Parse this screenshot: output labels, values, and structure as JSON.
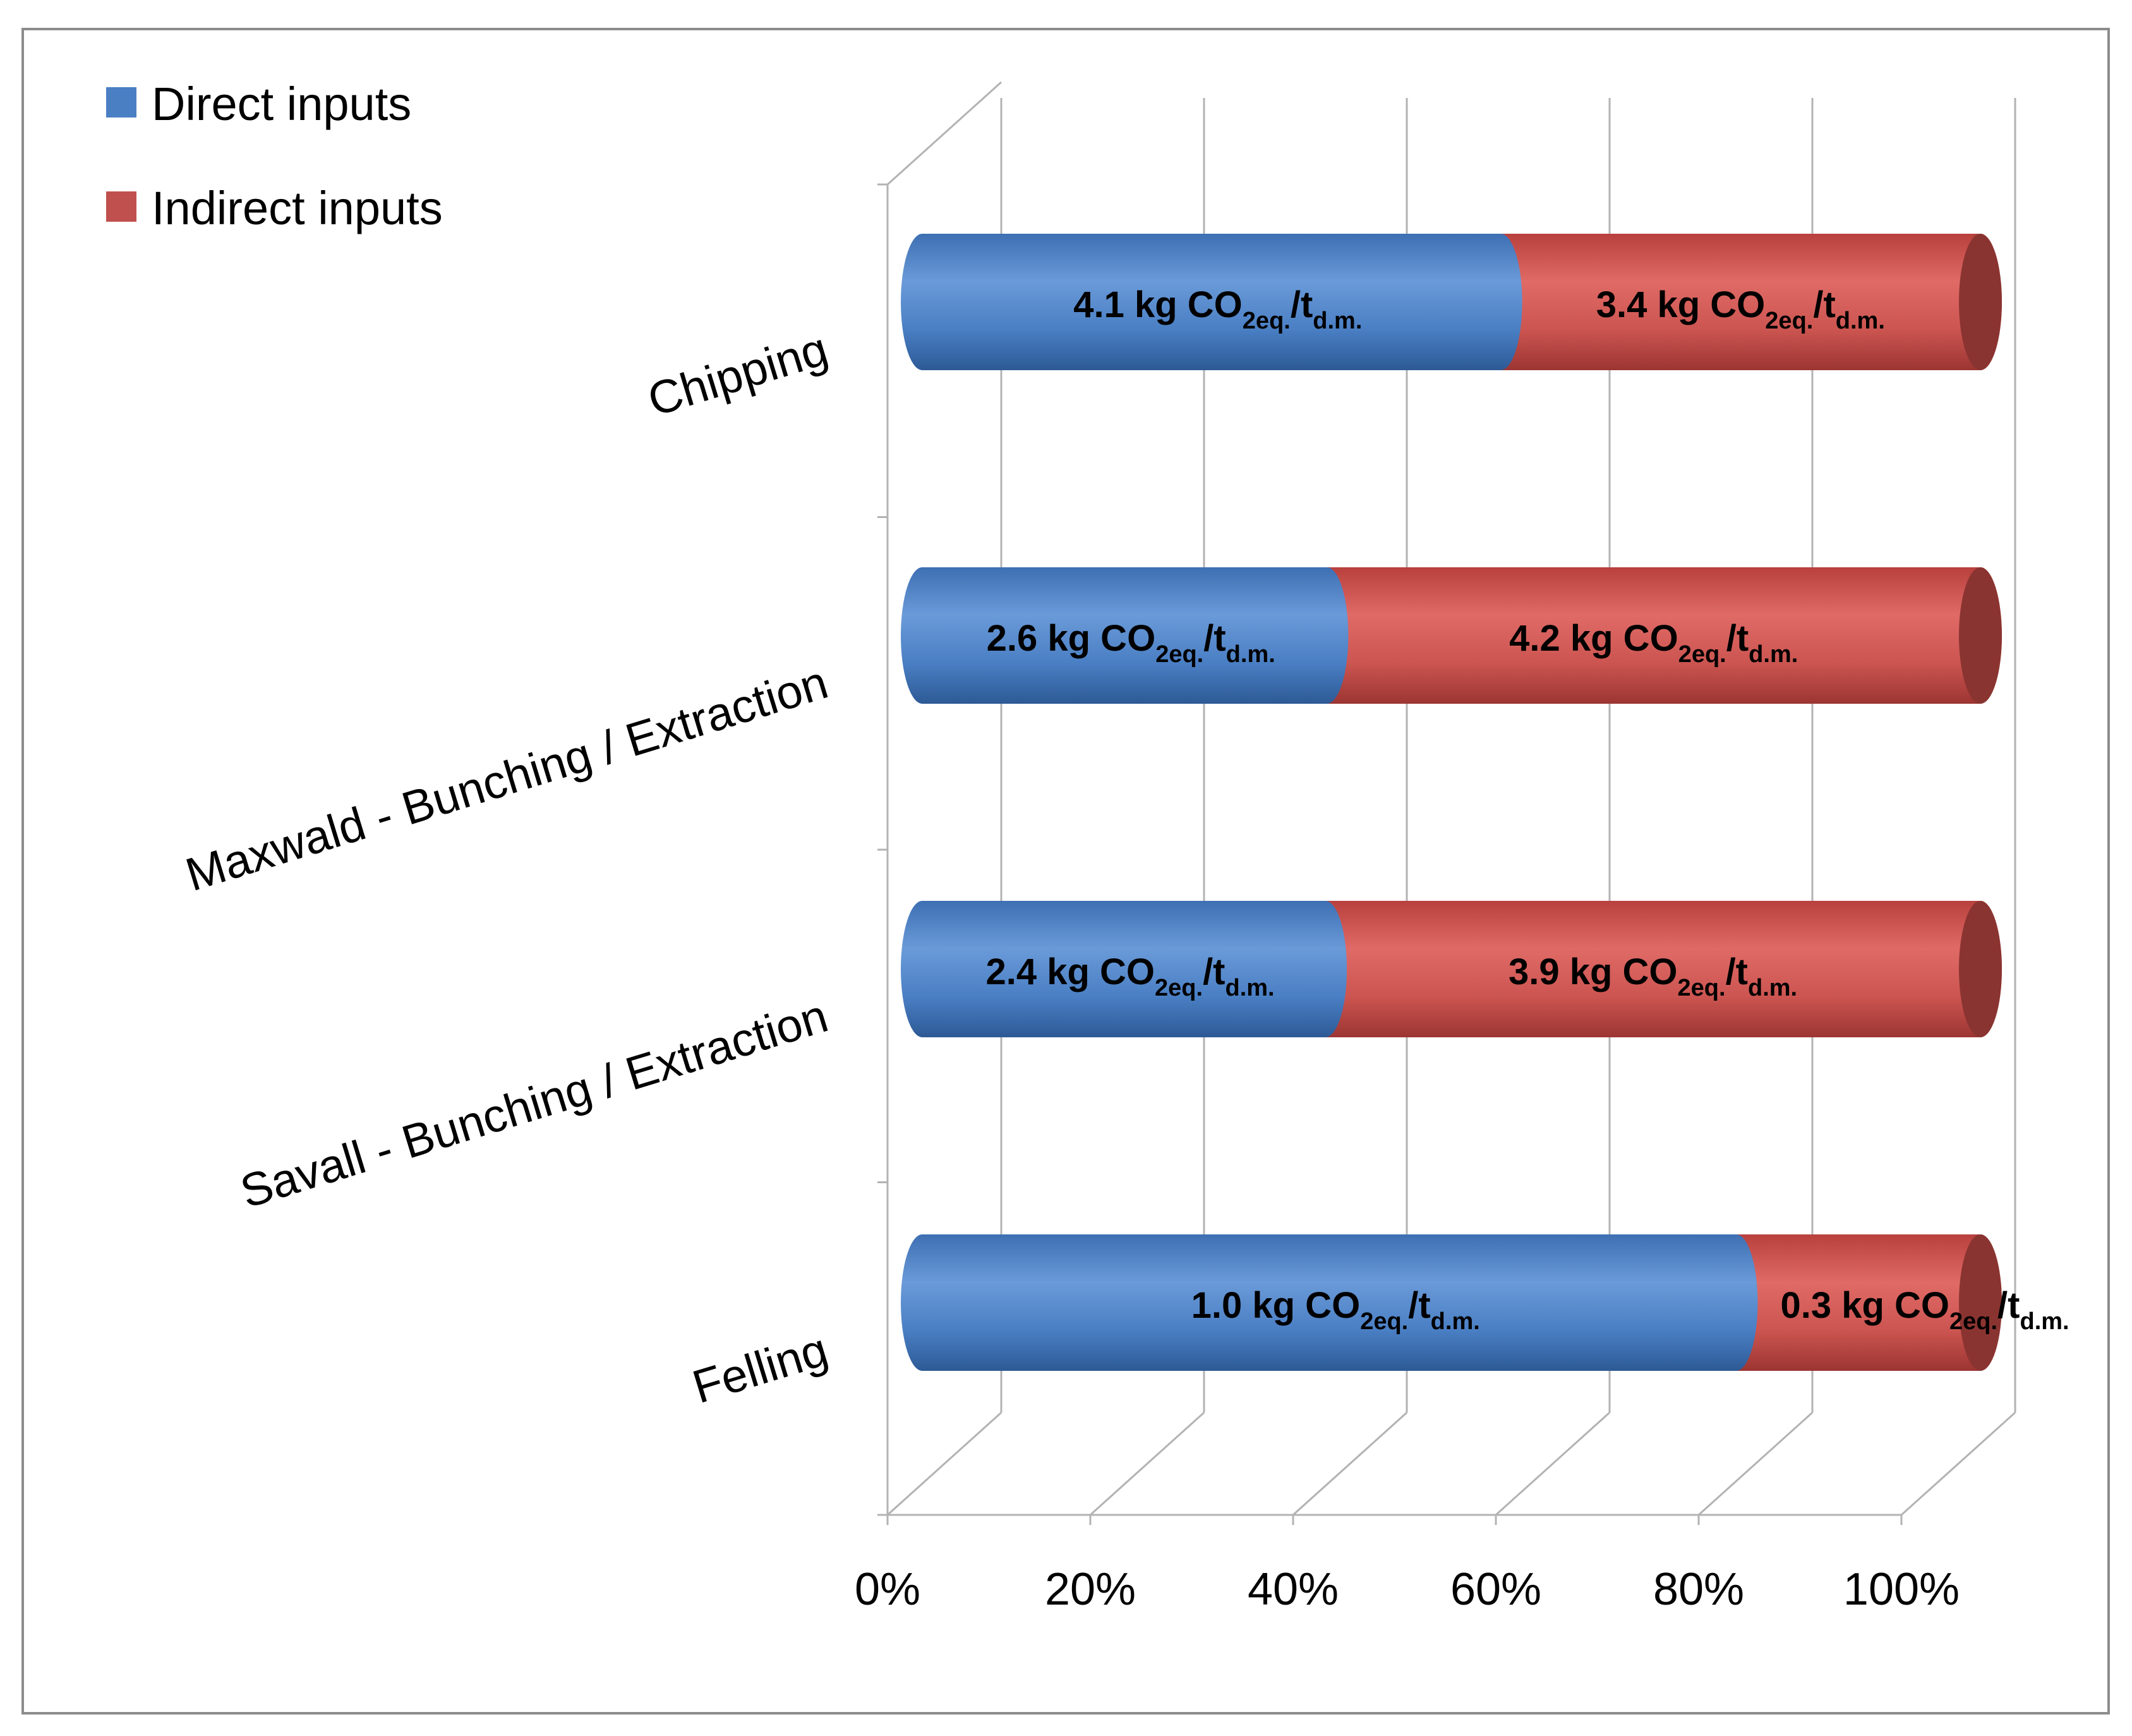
{
  "chart_data": {
    "type": "bar",
    "orientation": "horizontal",
    "stacking": "percent",
    "style": "3d-cylinder",
    "categories": [
      "Chipping",
      "Maxwald - Bunching / Extraction",
      "Savall - Bunching / Extraction",
      "Felling"
    ],
    "series": [
      {
        "name": "Direct inputs",
        "color": "#4a7fc4",
        "values": [
          4.1,
          2.6,
          2.4,
          1.0
        ],
        "labels": [
          {
            "prefix": "4.1 kg CO",
            "sub1": "2eq.",
            "mid": "/t",
            "sub2": "d.m."
          },
          {
            "prefix": "2.6 kg CO",
            "sub1": "2eq.",
            "mid": "/t",
            "sub2": "d.m."
          },
          {
            "prefix": "2.4 kg CO",
            "sub1": "2eq.",
            "mid": "/t",
            "sub2": "d.m."
          },
          {
            "prefix": "1.0 kg CO",
            "sub1": "2eq.",
            "mid": "/t",
            "sub2": "d.m."
          }
        ]
      },
      {
        "name": "Indirect inputs",
        "color": "#c0504d",
        "values": [
          3.4,
          4.2,
          3.9,
          0.3
        ],
        "labels": [
          {
            "prefix": "3.4 kg CO",
            "sub1": "2eq.",
            "mid": "/t",
            "sub2": "d.m."
          },
          {
            "prefix": "4.2 kg CO",
            "sub1": "2eq.",
            "mid": "/t",
            "sub2": "d.m."
          },
          {
            "prefix": "3.9 kg CO",
            "sub1": "2eq.",
            "mid": "/t",
            "sub2": "d.m."
          },
          {
            "prefix": "0.3 kg CO",
            "sub1": "2eq.",
            "mid": "/t",
            "sub2": "d.m."
          }
        ]
      }
    ],
    "xlim": [
      0,
      100
    ],
    "xticks": [
      "0%",
      "20%",
      "40%",
      "60%",
      "80%",
      "100%"
    ],
    "title": "",
    "xlabel": "",
    "ylabel": "",
    "legend": "top-left",
    "grid": true
  }
}
